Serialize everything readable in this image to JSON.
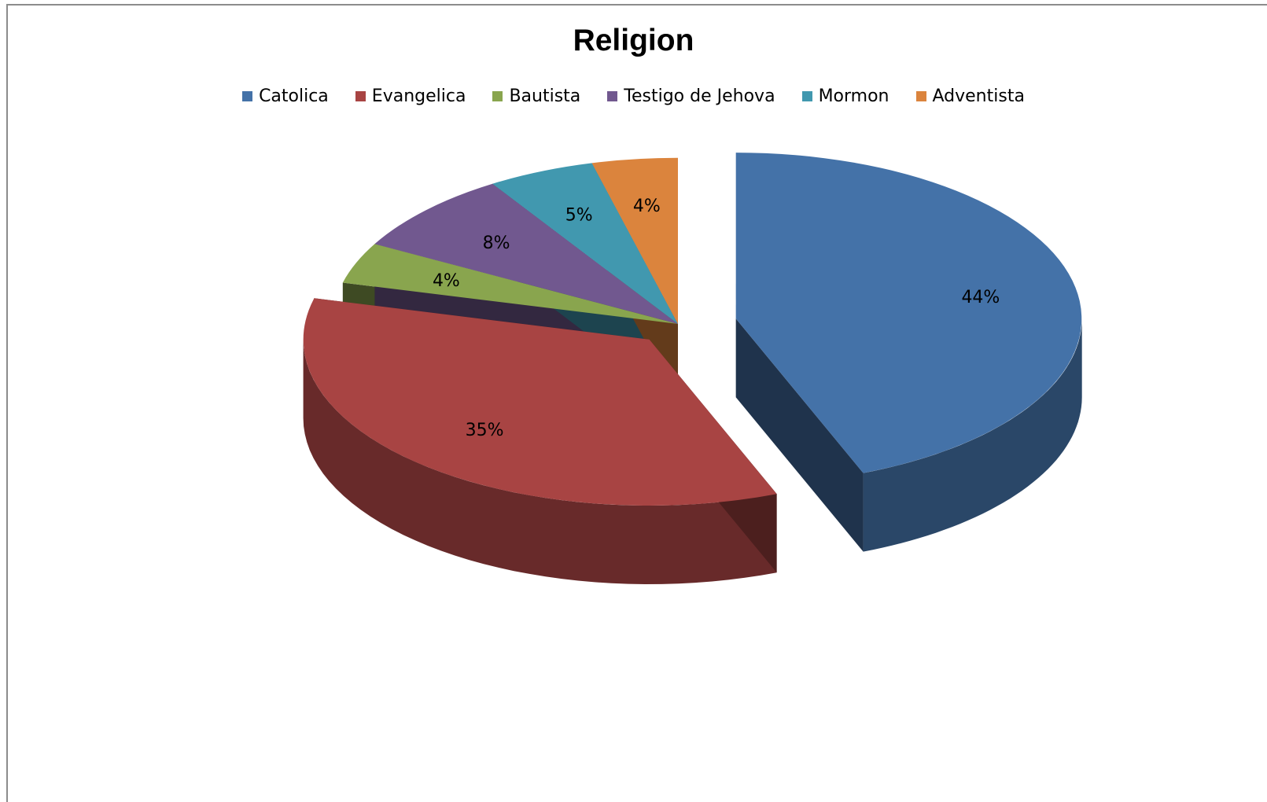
{
  "chart_data": {
    "type": "pie",
    "title": "Religion",
    "legend_position": "top",
    "exploded": true,
    "three_d": true,
    "categories": [
      "Catolica",
      "Evangelica",
      "Bautista",
      "Testigo de Jehova",
      "Mormon",
      "Adventista"
    ],
    "values": [
      44,
      35,
      4,
      8,
      5,
      4
    ],
    "labels": [
      "44%",
      "35%",
      "4%",
      "8%",
      "5%",
      "4%"
    ],
    "colors": [
      "#4472a8",
      "#a84443",
      "#89a54e",
      "#71588f",
      "#4198af",
      "#db843d"
    ]
  }
}
